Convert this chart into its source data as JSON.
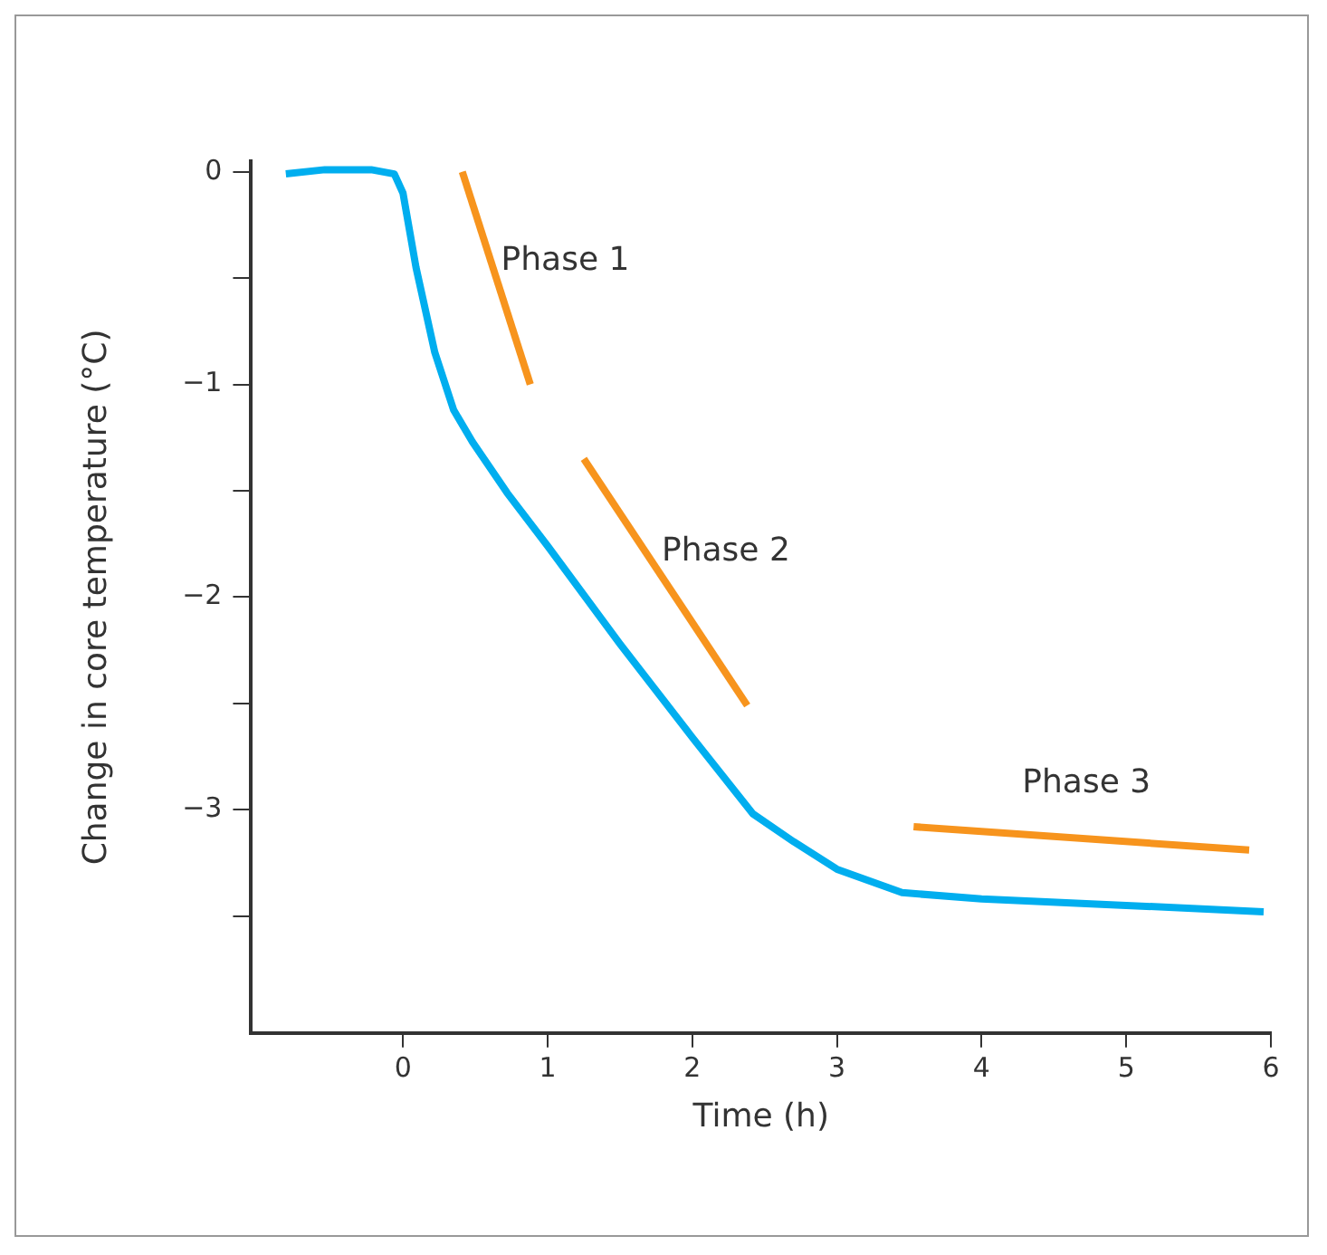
{
  "chart_data": {
    "type": "line",
    "xlabel": "Time (h)",
    "ylabel": "Change in core temperature (°C)",
    "xlim": [
      -1.05,
      6
    ],
    "xticks": [
      0,
      1,
      2,
      3,
      4,
      5,
      6
    ],
    "ylim": [
      -4.05,
      0.05
    ],
    "yticks": [
      0,
      {
        "value": -0.5,
        "label": null
      },
      -1,
      {
        "value": -1.5,
        "label": null
      },
      -2,
      {
        "value": -2.5,
        "label": null
      },
      -3,
      {
        "value": -3.5,
        "label": null
      }
    ],
    "grid": false,
    "legend": false,
    "marker": "none",
    "line_style": "solid",
    "series": [
      {
        "color": "#00aeef",
        "x": [
          -0.81,
          -0.54,
          -0.22,
          -0.06,
          0,
          0.09,
          0.22,
          0.35,
          0.48,
          0.72,
          1,
          1.5,
          2,
          2.42,
          2.7,
          3,
          3.45,
          4,
          5,
          5.95
        ],
        "values": [
          -0.01,
          0.01,
          0.01,
          -0.01,
          -0.1,
          -0.45,
          -0.85,
          -1.12,
          -1.27,
          -1.51,
          -1.76,
          -2.22,
          -2.66,
          -3.02,
          -3.15,
          -3.28,
          -3.39,
          -3.42,
          -3.45,
          -3.48
        ]
      },
      {
        "name": "Phase 1",
        "color": "#f7941d",
        "x": [
          0.41,
          0.88
        ],
        "values": [
          0,
          -1.0
        ]
      },
      {
        "name": "Phase 2",
        "color": "#f7941d",
        "x": [
          1.25,
          2.38
        ],
        "values": [
          -1.35,
          -2.51
        ]
      },
      {
        "name": "Phase 3",
        "color": "#f7941d",
        "x": [
          3.53,
          5.85
        ],
        "values": [
          -3.08,
          -3.19
        ]
      }
    ]
  }
}
